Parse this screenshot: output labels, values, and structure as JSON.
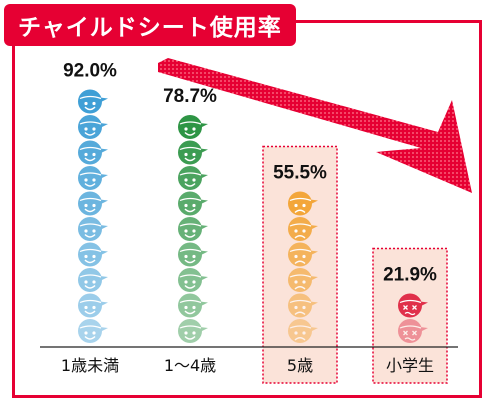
{
  "chart_data": {
    "type": "pictograph",
    "title": "チャイルドシート使用率",
    "categories": [
      "1歳未満",
      "1〜4歳",
      "5歳",
      "小学生"
    ],
    "values": [
      92.0,
      78.7,
      55.5,
      21.9
    ],
    "value_labels": [
      "92.0%",
      "78.7%",
      "55.5%",
      "21.9%"
    ],
    "icon_types": [
      "smile",
      "smile",
      "frown",
      "dizzy"
    ],
    "highlighted": [
      false,
      false,
      true,
      true
    ],
    "colors": {
      "accent": "#e60033",
      "icons": [
        "#3f9fd6",
        "#2e9545",
        "#f3a63a",
        "#e0304a"
      ],
      "highlight_fill": "#fbe3d9",
      "highlight_border": "#e60033"
    },
    "trend_arrow": "downward-right"
  }
}
